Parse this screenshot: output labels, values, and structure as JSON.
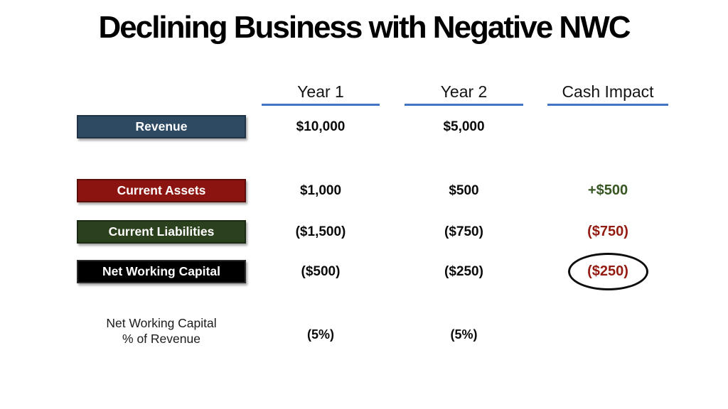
{
  "slide": {
    "title": "Declining Business with Negative NWC"
  },
  "colors": {
    "header_underline_blue": "#4472C4",
    "positive_green": "#375623",
    "negative_red": "#941B12",
    "value_black": "#0a0a0a"
  },
  "table": {
    "column_headers": [
      {
        "label": "Year 1"
      },
      {
        "label": "Year 2"
      },
      {
        "label": "Cash Impact"
      }
    ],
    "rows": [
      {
        "label": "Revenue",
        "fill": "#2E4A63",
        "border": "#203448",
        "year1": "$10,000",
        "year2": "$5,000",
        "cash": "",
        "cash_color": "#0a0a0a",
        "emphasized": false
      },
      {
        "label": "Current Assets",
        "fill": "#8B1410",
        "border": "#5C0D0A",
        "year1": "$1,000",
        "year2": "$500",
        "cash": "+$500",
        "cash_color": "#375623",
        "emphasized": false
      },
      {
        "label": "Current Liabilities",
        "fill": "#2B401D",
        "border": "#1B2A12",
        "year1": "($1,500)",
        "year2": "($750)",
        "cash": "($750)",
        "cash_color": "#941B12",
        "emphasized": false
      },
      {
        "label": "Net Working Capital",
        "fill": "#000000",
        "border": "#2B2B2B",
        "year1": "($500)",
        "year2": "($250)",
        "cash": "($250)",
        "cash_color": "#941B12",
        "emphasized": true
      }
    ],
    "footer": {
      "label": "Net Working Capital\n% of Revenue",
      "year1": "(5%)",
      "year2": "(5%)",
      "cash": ""
    }
  }
}
